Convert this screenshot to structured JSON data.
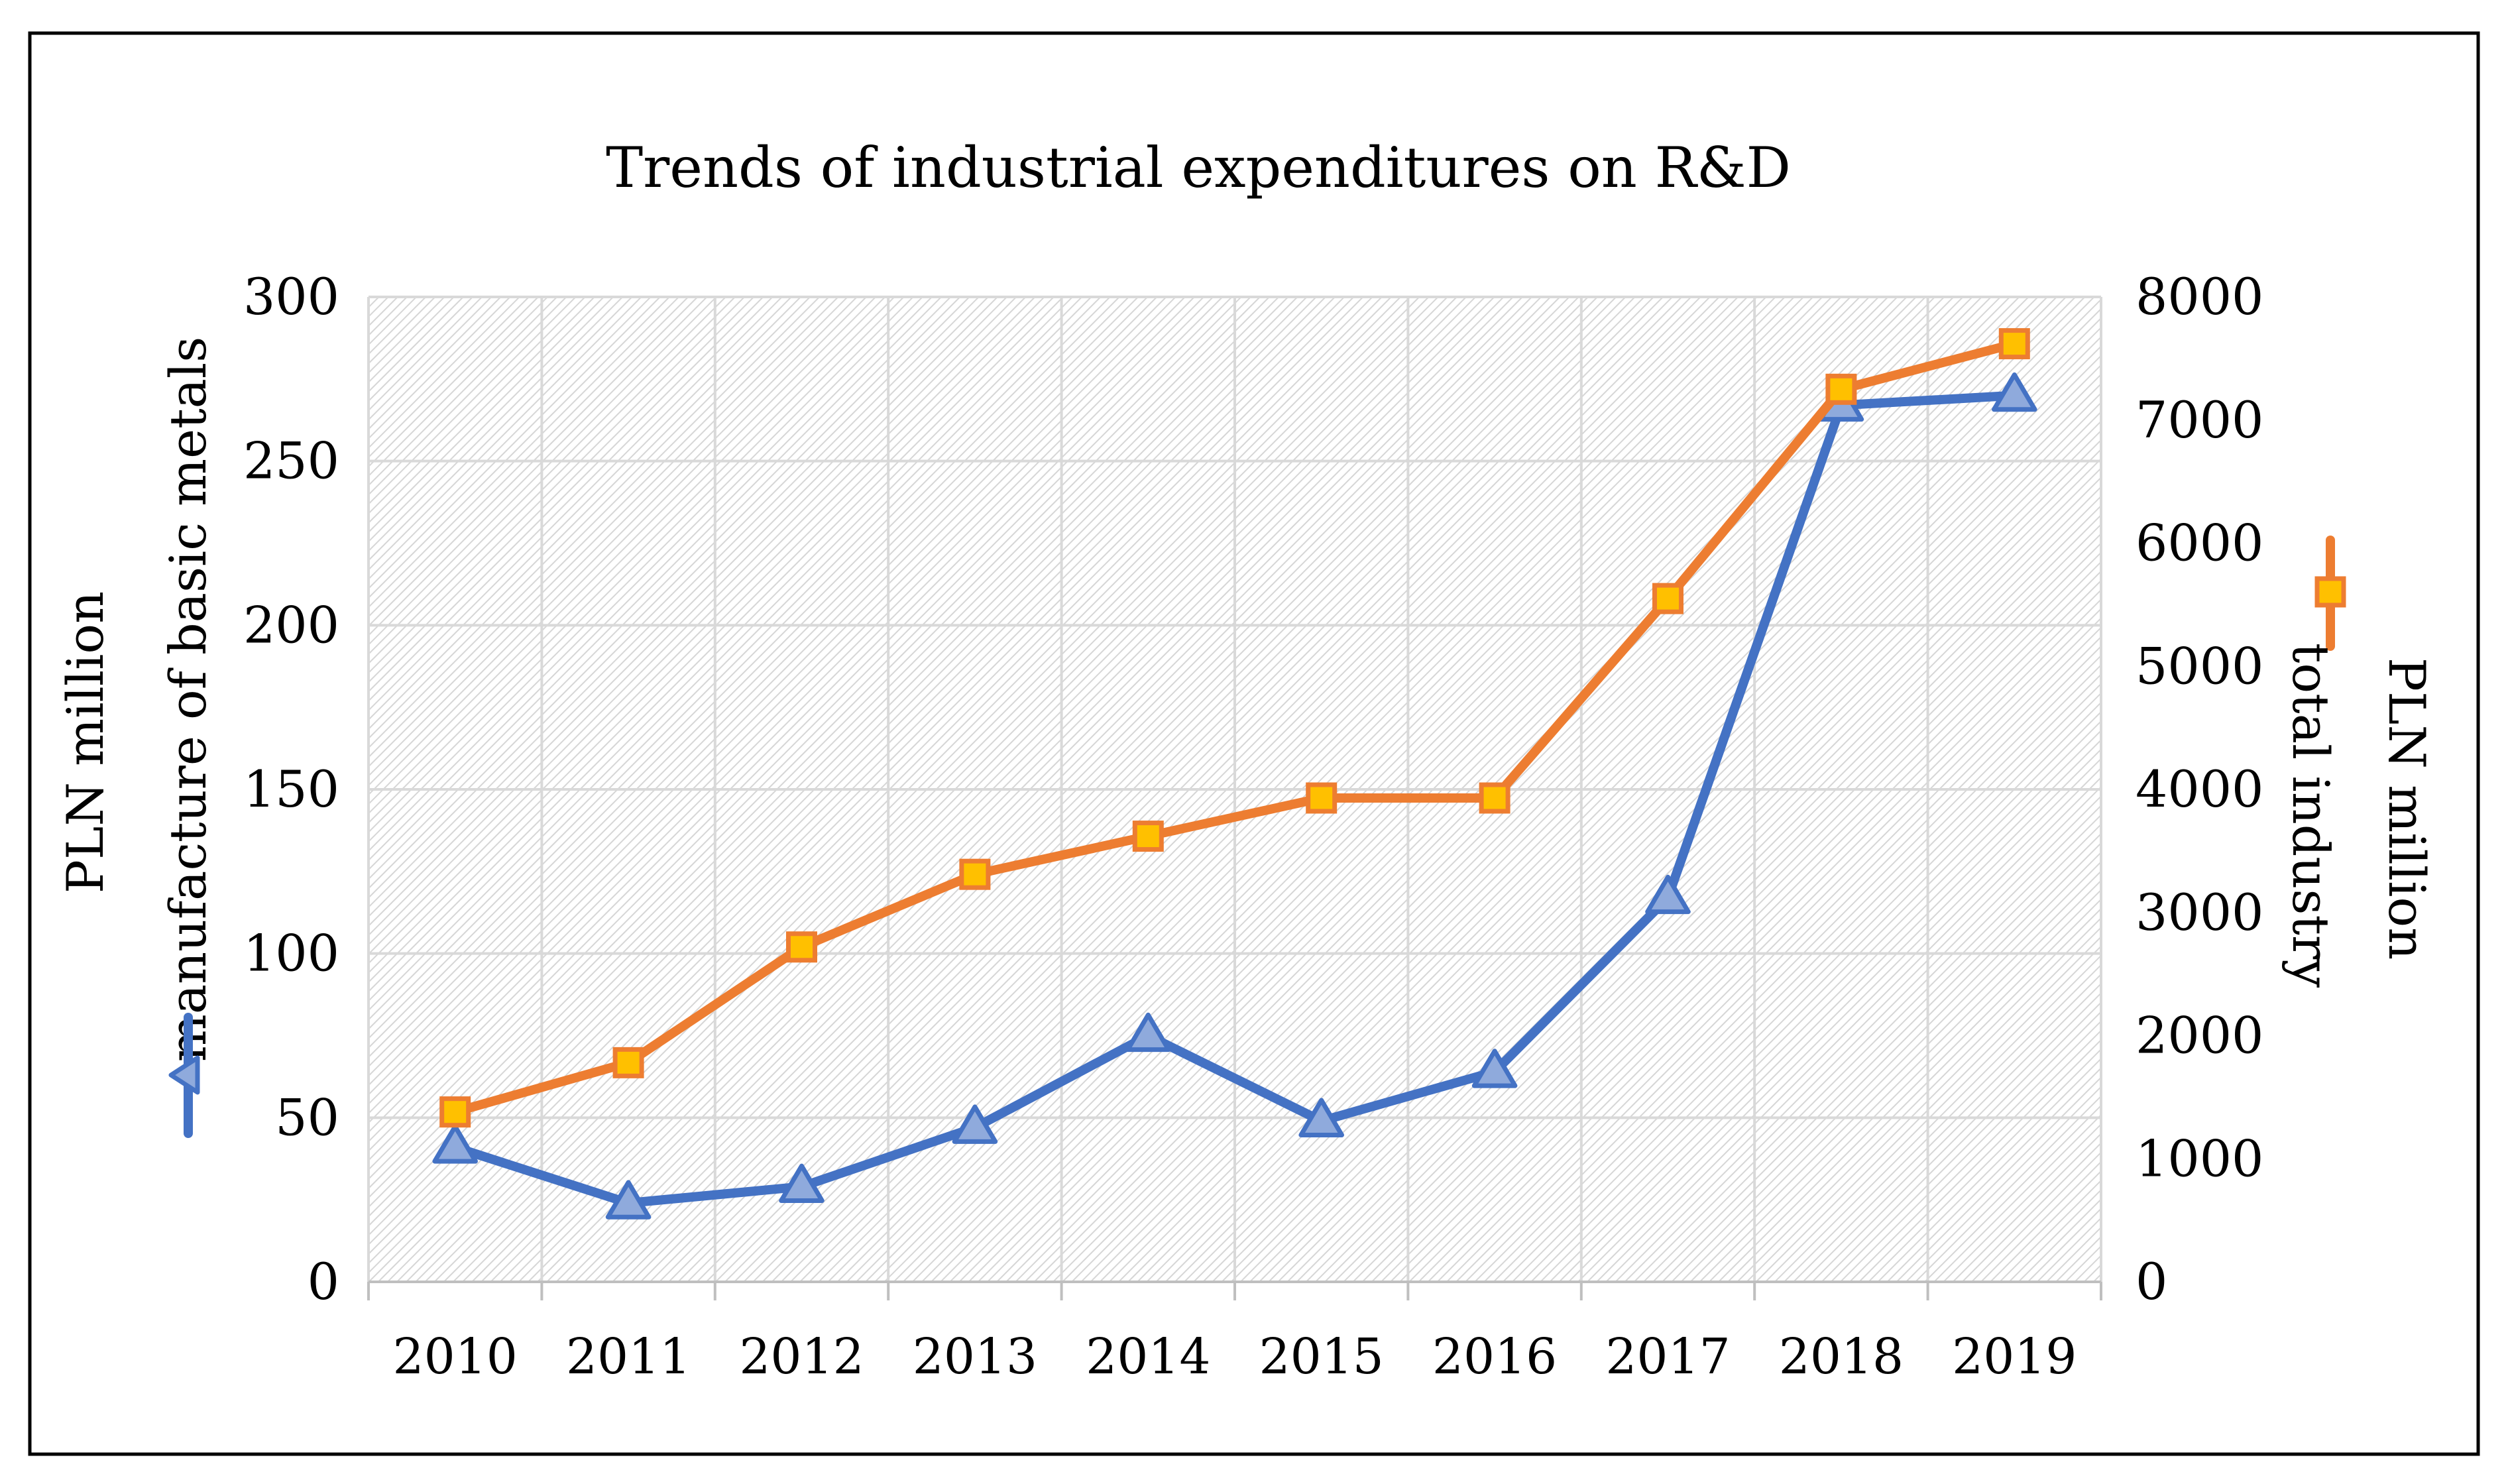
{
  "chart_data": {
    "type": "line",
    "title": "Trends of industrial expenditures on R&D",
    "categories": [
      "2010",
      "2011",
      "2012",
      "2013",
      "2014",
      "2015",
      "2016",
      "2017",
      "2018",
      "2019"
    ],
    "y_left": {
      "label": "PLN million",
      "range": [
        0,
        300
      ],
      "ticks": [
        0,
        50,
        100,
        150,
        200,
        250,
        300
      ],
      "tick_labels": [
        "0",
        "50",
        "100",
        "150",
        "200",
        "250",
        "300"
      ]
    },
    "y_right": {
      "label": "PLN  million",
      "range": [
        0,
        8000
      ],
      "ticks": [
        0,
        1000,
        2000,
        3000,
        4000,
        5000,
        6000,
        7000,
        8000
      ],
      "tick_labels": [
        "0",
        "1000",
        "2000",
        "3000",
        "4000",
        "5000",
        "6000",
        "7000",
        "8000"
      ]
    },
    "series": [
      {
        "name": "manufacture of basic metals",
        "axis": "left",
        "marker": "triangle",
        "color": "#4472C4",
        "marker_fill": "#8FAADC",
        "values": [
          41,
          24,
          29,
          47,
          75,
          49,
          64,
          117,
          267,
          270
        ]
      },
      {
        "name": "total industry",
        "axis": "right",
        "marker": "square",
        "color": "#ED7D31",
        "marker_fill": "#FFC000",
        "values": [
          1380,
          1780,
          2720,
          3310,
          3620,
          3930,
          3930,
          5550,
          7250,
          7620
        ]
      }
    ],
    "grid": true,
    "legend": "axis-titles"
  }
}
